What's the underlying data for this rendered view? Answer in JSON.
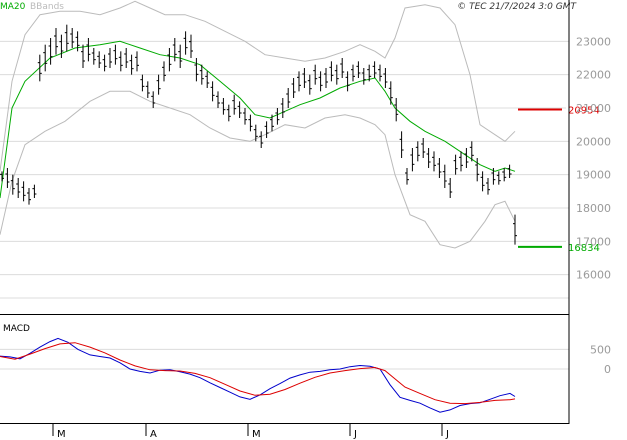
{
  "chart_data": [
    {
      "type": "ohlc-bar",
      "legend": [
        {
          "label": "MA20",
          "color": "#00aa00"
        },
        {
          "label": "BBands",
          "color": "#bbbbbb"
        }
      ],
      "copyright": "© TEC 21/7/2024 3:0 GMT",
      "ylim": [
        15000,
        24000
      ],
      "yticks": [
        "16000",
        "17000",
        "18000",
        "19000",
        "20000",
        "21000",
        "22000",
        "23000"
      ],
      "xlabels": [
        "M",
        "A",
        "M",
        "J",
        "J"
      ],
      "levels": [
        {
          "label": "20954",
          "value": 20954,
          "color": "#dd0000"
        },
        {
          "label": "16834",
          "value": 16834,
          "color": "#00aa00"
        }
      ],
      "bars": [
        [
          19100,
          18800
        ],
        [
          19200,
          18600
        ],
        [
          19000,
          18400
        ],
        [
          18900,
          18300
        ],
        [
          18800,
          18200
        ],
        [
          18600,
          18100
        ],
        [
          18700,
          18300
        ],
        [
          22600,
          21800
        ],
        [
          22900,
          22100
        ],
        [
          23100,
          22300
        ],
        [
          23400,
          22600
        ],
        [
          23200,
          22500
        ],
        [
          23500,
          22700
        ],
        [
          23400,
          22800
        ],
        [
          23300,
          22700
        ],
        [
          22900,
          22200
        ],
        [
          23100,
          22400
        ],
        [
          22800,
          22300
        ],
        [
          22700,
          22200
        ],
        [
          22600,
          22100
        ],
        [
          22800,
          22200
        ],
        [
          22900,
          22300
        ],
        [
          22700,
          22100
        ],
        [
          22800,
          22200
        ],
        [
          22600,
          22000
        ],
        [
          22700,
          22100
        ],
        [
          22000,
          21500
        ],
        [
          21800,
          21300
        ],
        [
          21500,
          21000
        ],
        [
          22000,
          21400
        ],
        [
          22400,
          21800
        ],
        [
          22800,
          22100
        ],
        [
          23100,
          22400
        ],
        [
          22900,
          22200
        ],
        [
          23300,
          22600
        ],
        [
          23200,
          22500
        ],
        [
          22500,
          21800
        ],
        [
          22300,
          21700
        ],
        [
          22100,
          21600
        ],
        [
          21800,
          21200
        ],
        [
          21500,
          21000
        ],
        [
          21300,
          20800
        ],
        [
          21100,
          20600
        ],
        [
          21400,
          20800
        ],
        [
          21200,
          20700
        ],
        [
          21000,
          20500
        ],
        [
          20800,
          20300
        ],
        [
          20500,
          20000
        ],
        [
          20300,
          19800
        ],
        [
          20600,
          20100
        ],
        [
          20800,
          20300
        ],
        [
          21000,
          20500
        ],
        [
          21300,
          20700
        ],
        [
          21600,
          21000
        ],
        [
          21900,
          21300
        ],
        [
          22100,
          21500
        ],
        [
          22200,
          21600
        ],
        [
          22000,
          21400
        ],
        [
          22300,
          21700
        ],
        [
          22100,
          21500
        ],
        [
          22200,
          21600
        ],
        [
          22400,
          21800
        ],
        [
          22300,
          21700
        ],
        [
          22500,
          21900
        ],
        [
          22100,
          21500
        ],
        [
          22300,
          21800
        ],
        [
          22400,
          21900
        ],
        [
          22200,
          21700
        ],
        [
          22300,
          21800
        ],
        [
          22400,
          21900
        ],
        [
          22300,
          21800
        ],
        [
          22200,
          21600
        ],
        [
          21800,
          21100
        ],
        [
          21300,
          20600
        ],
        [
          20300,
          19500
        ],
        [
          19200,
          18700
        ],
        [
          19800,
          19100
        ],
        [
          20000,
          19400
        ],
        [
          20100,
          19500
        ],
        [
          19800,
          19200
        ],
        [
          19700,
          19100
        ],
        [
          19500,
          18900
        ],
        [
          19300,
          18600
        ],
        [
          18900,
          18300
        ],
        [
          19600,
          19000
        ],
        [
          19700,
          19100
        ],
        [
          19800,
          19200
        ],
        [
          20000,
          19400
        ],
        [
          19500,
          18800
        ],
        [
          19100,
          18500
        ],
        [
          18900,
          18400
        ],
        [
          19200,
          18700
        ],
        [
          19100,
          18700
        ],
        [
          19200,
          18800
        ],
        [
          19300,
          18900
        ],
        [
          17800,
          16900
        ]
      ],
      "ma20": [
        [
          0,
          18300
        ],
        [
          12,
          21000
        ],
        [
          25,
          21800
        ],
        [
          50,
          22500
        ],
        [
          75,
          22800
        ],
        [
          100,
          22900
        ],
        [
          120,
          23000
        ],
        [
          140,
          22800
        ],
        [
          160,
          22600
        ],
        [
          180,
          22500
        ],
        [
          200,
          22300
        ],
        [
          220,
          21800
        ],
        [
          240,
          21300
        ],
        [
          255,
          20800
        ],
        [
          270,
          20700
        ],
        [
          285,
          20900
        ],
        [
          300,
          21100
        ],
        [
          320,
          21300
        ],
        [
          340,
          21600
        ],
        [
          360,
          21800
        ],
        [
          375,
          21900
        ],
        [
          385,
          21500
        ],
        [
          395,
          21000
        ],
        [
          410,
          20600
        ],
        [
          425,
          20300
        ],
        [
          445,
          20000
        ],
        [
          465,
          19600
        ],
        [
          480,
          19300
        ],
        [
          495,
          19100
        ],
        [
          505,
          19200
        ],
        [
          515,
          19100
        ]
      ],
      "bb_upper": [
        [
          0,
          19100
        ],
        [
          12,
          21800
        ],
        [
          25,
          23200
        ],
        [
          40,
          23800
        ],
        [
          60,
          23900
        ],
        [
          80,
          23900
        ],
        [
          100,
          23800
        ],
        [
          120,
          24000
        ],
        [
          135,
          24200
        ],
        [
          150,
          24000
        ],
        [
          165,
          23800
        ],
        [
          185,
          23800
        ],
        [
          205,
          23600
        ],
        [
          225,
          23300
        ],
        [
          245,
          23000
        ],
        [
          265,
          22600
        ],
        [
          285,
          22500
        ],
        [
          305,
          22400
        ],
        [
          325,
          22500
        ],
        [
          345,
          22700
        ],
        [
          360,
          22900
        ],
        [
          375,
          22700
        ],
        [
          385,
          22500
        ],
        [
          395,
          23100
        ],
        [
          405,
          24000
        ],
        [
          425,
          24100
        ],
        [
          440,
          24000
        ],
        [
          455,
          23500
        ],
        [
          470,
          22000
        ],
        [
          480,
          20500
        ],
        [
          495,
          20200
        ],
        [
          505,
          20000
        ],
        [
          515,
          20300
        ]
      ],
      "bb_lower": [
        [
          0,
          17200
        ],
        [
          12,
          18800
        ],
        [
          25,
          19900
        ],
        [
          45,
          20300
        ],
        [
          65,
          20600
        ],
        [
          90,
          21200
        ],
        [
          110,
          21500
        ],
        [
          130,
          21500
        ],
        [
          150,
          21200
        ],
        [
          170,
          21000
        ],
        [
          190,
          20800
        ],
        [
          210,
          20400
        ],
        [
          230,
          20100
        ],
        [
          250,
          20000
        ],
        [
          265,
          20200
        ],
        [
          285,
          20500
        ],
        [
          305,
          20400
        ],
        [
          325,
          20700
        ],
        [
          345,
          20800
        ],
        [
          360,
          20700
        ],
        [
          375,
          20500
        ],
        [
          385,
          20200
        ],
        [
          395,
          19000
        ],
        [
          410,
          17800
        ],
        [
          425,
          17600
        ],
        [
          440,
          16900
        ],
        [
          455,
          16800
        ],
        [
          470,
          17000
        ],
        [
          485,
          17600
        ],
        [
          495,
          18100
        ],
        [
          505,
          18200
        ],
        [
          515,
          17600
        ]
      ],
      "sub": {
        "title": "MACD",
        "ylim": [
          -1400,
          1300
        ],
        "yticks": [
          "500",
          "0"
        ],
        "macd": [
          [
            0,
            330
          ],
          [
            10,
            310
          ],
          [
            20,
            260
          ],
          [
            30,
            400
          ],
          [
            40,
            560
          ],
          [
            50,
            700
          ],
          [
            58,
            780
          ],
          [
            68,
            680
          ],
          [
            78,
            500
          ],
          [
            90,
            360
          ],
          [
            100,
            320
          ],
          [
            110,
            280
          ],
          [
            120,
            160
          ],
          [
            130,
            0
          ],
          [
            140,
            -60
          ],
          [
            150,
            -100
          ],
          [
            160,
            -30
          ],
          [
            170,
            -20
          ],
          [
            180,
            -70
          ],
          [
            190,
            -130
          ],
          [
            200,
            -220
          ],
          [
            210,
            -350
          ],
          [
            220,
            -470
          ],
          [
            230,
            -590
          ],
          [
            240,
            -710
          ],
          [
            250,
            -770
          ],
          [
            260,
            -660
          ],
          [
            270,
            -500
          ],
          [
            280,
            -370
          ],
          [
            290,
            -230
          ],
          [
            300,
            -150
          ],
          [
            310,
            -80
          ],
          [
            320,
            -60
          ],
          [
            330,
            -20
          ],
          [
            340,
            0
          ],
          [
            350,
            60
          ],
          [
            360,
            90
          ],
          [
            370,
            70
          ],
          [
            380,
            0
          ],
          [
            390,
            -400
          ],
          [
            400,
            -720
          ],
          [
            410,
            -800
          ],
          [
            420,
            -870
          ],
          [
            430,
            -990
          ],
          [
            440,
            -1100
          ],
          [
            450,
            -1040
          ],
          [
            460,
            -930
          ],
          [
            470,
            -880
          ],
          [
            480,
            -860
          ],
          [
            490,
            -770
          ],
          [
            500,
            -680
          ],
          [
            510,
            -620
          ],
          [
            515,
            -700
          ]
        ],
        "signal": [
          [
            0,
            320
          ],
          [
            15,
            250
          ],
          [
            30,
            380
          ],
          [
            45,
            520
          ],
          [
            60,
            640
          ],
          [
            75,
            670
          ],
          [
            90,
            560
          ],
          [
            105,
            410
          ],
          [
            120,
            230
          ],
          [
            135,
            80
          ],
          [
            150,
            -20
          ],
          [
            165,
            -40
          ],
          [
            180,
            -50
          ],
          [
            195,
            -110
          ],
          [
            210,
            -220
          ],
          [
            225,
            -390
          ],
          [
            240,
            -560
          ],
          [
            255,
            -670
          ],
          [
            270,
            -640
          ],
          [
            285,
            -520
          ],
          [
            300,
            -360
          ],
          [
            315,
            -210
          ],
          [
            330,
            -100
          ],
          [
            345,
            -40
          ],
          [
            360,
            10
          ],
          [
            375,
            40
          ],
          [
            385,
            -40
          ],
          [
            395,
            -250
          ],
          [
            405,
            -460
          ],
          [
            420,
            -620
          ],
          [
            435,
            -780
          ],
          [
            450,
            -870
          ],
          [
            465,
            -880
          ],
          [
            480,
            -850
          ],
          [
            495,
            -800
          ],
          [
            510,
            -780
          ],
          [
            515,
            -760
          ]
        ]
      }
    }
  ]
}
